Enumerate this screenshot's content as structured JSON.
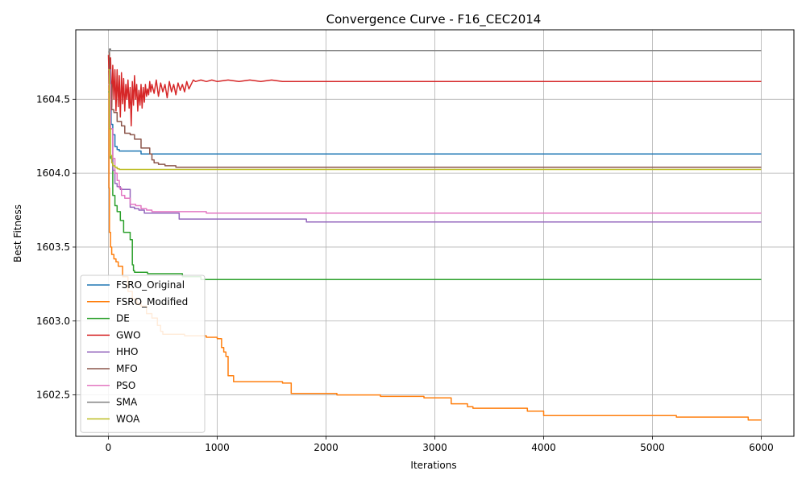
{
  "chart_data": {
    "type": "line",
    "title": "Convergence Curve - F16_CEC2014",
    "xlabel": "Iterations",
    "ylabel": "Best Fitness",
    "xlim": [
      -300,
      6300
    ],
    "ylim": [
      1602.22,
      1604.97
    ],
    "xticks": [
      0,
      1000,
      2000,
      3000,
      4000,
      5000,
      6000
    ],
    "xtick_labels": [
      "0",
      "1000",
      "2000",
      "3000",
      "4000",
      "5000",
      "6000"
    ],
    "yticks": [
      1602.5,
      1603.0,
      1603.5,
      1604.0,
      1604.5
    ],
    "ytick_labels": [
      "1602.5",
      "1603.0",
      "1603.5",
      "1604.0",
      "1604.5"
    ],
    "grid": true,
    "legend_position": "lower-left",
    "series": [
      {
        "name": "FSRO_Original",
        "color": "#1f77b4",
        "step": true,
        "x": [
          0,
          10,
          25,
          40,
          60,
          80,
          100,
          300,
          6000
        ],
        "y": [
          1604.78,
          1604.55,
          1604.33,
          1604.26,
          1604.18,
          1604.16,
          1604.15,
          1604.13,
          1604.13
        ]
      },
      {
        "name": "FSRO_Modified",
        "color": "#ff7f0e",
        "step": true,
        "x": [
          0,
          5,
          10,
          20,
          30,
          50,
          70,
          90,
          130,
          180,
          220,
          260,
          300,
          350,
          400,
          450,
          480,
          500,
          700,
          900,
          1000,
          1040,
          1060,
          1080,
          1100,
          1150,
          1600,
          1680,
          2100,
          2500,
          2900,
          3150,
          3300,
          3350,
          3400,
          3850,
          4000,
          5220,
          5650,
          5880,
          6000
        ],
        "y": [
          1604.7,
          1603.9,
          1603.6,
          1603.5,
          1603.45,
          1603.42,
          1603.4,
          1603.37,
          1603.3,
          1603.2,
          1603.15,
          1603.12,
          1603.1,
          1603.05,
          1603.02,
          1602.97,
          1602.93,
          1602.91,
          1602.9,
          1602.89,
          1602.88,
          1602.82,
          1602.79,
          1602.76,
          1602.63,
          1602.59,
          1602.58,
          1602.51,
          1602.5,
          1602.49,
          1602.48,
          1602.44,
          1602.42,
          1602.41,
          1602.41,
          1602.39,
          1602.36,
          1602.35,
          1602.35,
          1602.33,
          1602.33
        ]
      },
      {
        "name": "DE",
        "color": "#2ca02c",
        "step": true,
        "x": [
          0,
          20,
          40,
          60,
          80,
          110,
          140,
          200,
          220,
          230,
          240,
          360,
          680,
          850,
          6000
        ],
        "y": [
          1604.55,
          1604.1,
          1603.85,
          1603.78,
          1603.74,
          1603.68,
          1603.6,
          1603.55,
          1603.38,
          1603.34,
          1603.33,
          1603.32,
          1603.3,
          1603.28,
          1603.28
        ]
      },
      {
        "name": "GWO",
        "color": "#d62728",
        "step": false,
        "x": [
          0,
          10,
          20,
          30,
          40,
          50,
          60,
          70,
          80,
          90,
          100,
          110,
          120,
          130,
          140,
          150,
          160,
          170,
          180,
          190,
          200,
          210,
          220,
          230,
          240,
          250,
          260,
          270,
          280,
          290,
          300,
          310,
          320,
          330,
          340,
          350,
          360,
          370,
          380,
          390,
          400,
          420,
          440,
          460,
          480,
          500,
          520,
          540,
          560,
          580,
          600,
          620,
          640,
          660,
          680,
          700,
          720,
          740,
          760,
          780,
          800,
          850,
          900,
          950,
          1000,
          1100,
          1200,
          1300,
          1400,
          1500,
          1600,
          1700,
          1800,
          2000,
          2500,
          3000,
          3500,
          4000,
          4500,
          5000,
          5500,
          6000
        ],
        "y": [
          1604.8,
          1604.55,
          1604.78,
          1604.45,
          1604.73,
          1604.5,
          1604.7,
          1604.42,
          1604.7,
          1604.45,
          1604.66,
          1604.38,
          1604.68,
          1604.47,
          1604.64,
          1604.42,
          1604.6,
          1604.5,
          1604.63,
          1604.44,
          1604.58,
          1604.32,
          1604.62,
          1604.46,
          1604.66,
          1604.5,
          1604.6,
          1604.42,
          1604.56,
          1604.46,
          1604.6,
          1604.44,
          1604.58,
          1604.48,
          1604.6,
          1604.52,
          1604.57,
          1604.53,
          1604.62,
          1604.55,
          1604.6,
          1604.54,
          1604.63,
          1604.52,
          1604.61,
          1604.55,
          1604.6,
          1604.51,
          1604.62,
          1604.55,
          1604.6,
          1604.53,
          1604.61,
          1604.56,
          1604.6,
          1604.55,
          1604.62,
          1604.57,
          1604.6,
          1604.63,
          1604.62,
          1604.63,
          1604.62,
          1604.63,
          1604.62,
          1604.63,
          1604.62,
          1604.63,
          1604.62,
          1604.63,
          1604.62,
          1604.62,
          1604.62,
          1604.62,
          1604.62,
          1604.62,
          1604.62,
          1604.62,
          1604.62,
          1604.62,
          1604.62,
          1604.62
        ]
      },
      {
        "name": "HHO",
        "color": "#9467bd",
        "step": true,
        "x": [
          0,
          20,
          40,
          60,
          80,
          110,
          200,
          240,
          280,
          330,
          650,
          1800,
          1820,
          6000
        ],
        "y": [
          1604.7,
          1604.3,
          1604.02,
          1603.93,
          1603.91,
          1603.89,
          1603.77,
          1603.76,
          1603.75,
          1603.73,
          1603.69,
          1603.69,
          1603.67,
          1603.67
        ]
      },
      {
        "name": "MFO",
        "color": "#8c564b",
        "step": true,
        "x": [
          0,
          10,
          30,
          50,
          80,
          120,
          150,
          200,
          240,
          300,
          380,
          400,
          420,
          460,
          520,
          620,
          6000
        ],
        "y": [
          1604.82,
          1604.6,
          1604.43,
          1604.41,
          1604.35,
          1604.32,
          1604.27,
          1604.26,
          1604.23,
          1604.17,
          1604.13,
          1604.09,
          1604.07,
          1604.06,
          1604.05,
          1604.04,
          1604.04
        ]
      },
      {
        "name": "PSO",
        "color": "#e377c2",
        "step": true,
        "x": [
          0,
          20,
          40,
          60,
          80,
          100,
          120,
          150,
          200,
          250,
          300,
          350,
          400,
          900,
          6000
        ],
        "y": [
          1604.6,
          1604.3,
          1604.1,
          1604.0,
          1603.95,
          1603.9,
          1603.85,
          1603.83,
          1603.79,
          1603.78,
          1603.76,
          1603.75,
          1603.74,
          1603.73,
          1603.73
        ]
      },
      {
        "name": "SMA",
        "color": "#7f7f7f",
        "step": true,
        "x": [
          0,
          10,
          20,
          6000
        ],
        "y": [
          1604.82,
          1604.84,
          1604.83,
          1604.83
        ]
      },
      {
        "name": "WOA",
        "color": "#bcbd22",
        "step": true,
        "x": [
          0,
          10,
          20,
          30,
          40,
          60,
          80,
          100,
          6000
        ],
        "y": [
          1604.7,
          1604.3,
          1604.12,
          1604.07,
          1604.05,
          1604.04,
          1604.03,
          1604.025,
          1604.025
        ]
      }
    ]
  }
}
